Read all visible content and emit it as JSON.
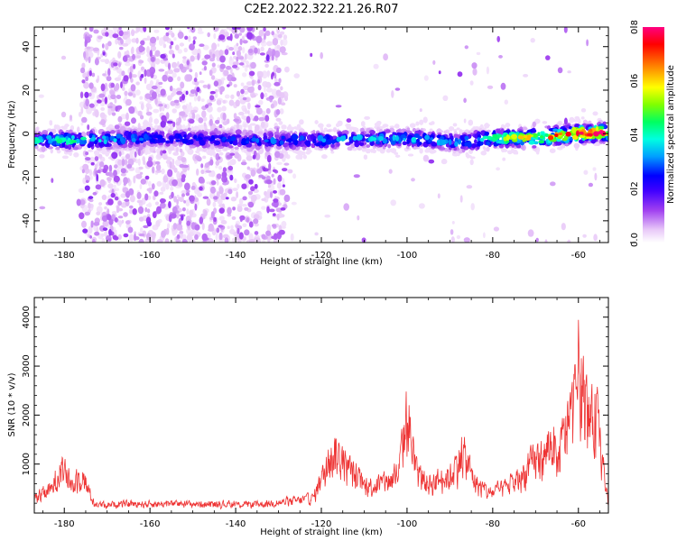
{
  "title": "C2E2.2022.322.21.26.R07",
  "chart_data": [
    {
      "type": "heatmap",
      "xlabel": "Height of straight line (km)",
      "ylabel": "Frequency (Hz)",
      "xlim": [
        -187,
        -53
      ],
      "ylim": [
        -50,
        49
      ],
      "xticks": [
        -180,
        -160,
        -140,
        -120,
        -100,
        -80,
        -60
      ],
      "yticks": [
        -40,
        -20,
        0,
        20,
        40
      ],
      "grid": false,
      "colorbar": {
        "label": "Normalized spectral amplitude",
        "range": [
          0,
          0.8
        ],
        "ticks": [
          "0.0",
          "0.2",
          "0.4",
          "0.6",
          "0.8"
        ],
        "colors": [
          "#ffffff",
          "#e8c8f8",
          "#a040f0",
          "#4000ff",
          "#0000ff",
          "#00a0ff",
          "#00ffe0",
          "#00ff60",
          "#80ff00",
          "#ffff00",
          "#ff8000",
          "#ff0000",
          "#ff0080"
        ]
      },
      "ridge": {
        "x": [
          -187,
          -175,
          -160,
          -140,
          -120,
          -100,
          -88,
          -80,
          -70,
          -60,
          -53
        ],
        "freq": [
          -3,
          -3,
          -2,
          -3,
          -3,
          -2,
          -4,
          -2,
          -2,
          0,
          1
        ],
        "peak_amplitude": [
          0.4,
          0.4,
          0.25,
          0.25,
          0.3,
          0.35,
          0.3,
          0.45,
          0.6,
          0.7,
          0.75
        ]
      },
      "noise_band": {
        "x_range": [
          -176,
          -128
        ],
        "freq_range": [
          -50,
          49
        ]
      }
    },
    {
      "type": "line",
      "xlabel": "Height of straight line (km)",
      "ylabel": "SNR (10 * v/v)",
      "xlim": [
        -187,
        -53
      ],
      "ylim": [
        0,
        4400
      ],
      "xticks": [
        -180,
        -160,
        -140,
        -120,
        -100,
        -80,
        -60
      ],
      "yticks": [
        1000,
        2000,
        3000,
        4000
      ],
      "color": "#ee3333",
      "series": [
        {
          "x": [
            -187,
            -183,
            -181,
            -178,
            -176,
            -173,
            -165,
            -155,
            -145,
            -135,
            -127,
            -122,
            -119,
            -117,
            -115,
            -112,
            -110,
            -105,
            -102,
            -100,
            -98,
            -95,
            -90,
            -87,
            -84,
            -81,
            -78,
            -75,
            -72,
            -70,
            -68,
            -66,
            -65,
            -63,
            -61,
            -60,
            -59,
            -57,
            -56,
            -55,
            -53
          ],
          "y": [
            450,
            700,
            1400,
            800,
            1200,
            250,
            280,
            280,
            270,
            260,
            350,
            450,
            1300,
            1900,
            1500,
            1100,
            800,
            900,
            1200,
            3000,
            1200,
            900,
            1100,
            1800,
            900,
            600,
            700,
            900,
            1300,
            1600,
            1700,
            2200,
            1500,
            2500,
            3000,
            4400,
            3500,
            2600,
            3300,
            2000,
            200
          ]
        }
      ]
    }
  ]
}
